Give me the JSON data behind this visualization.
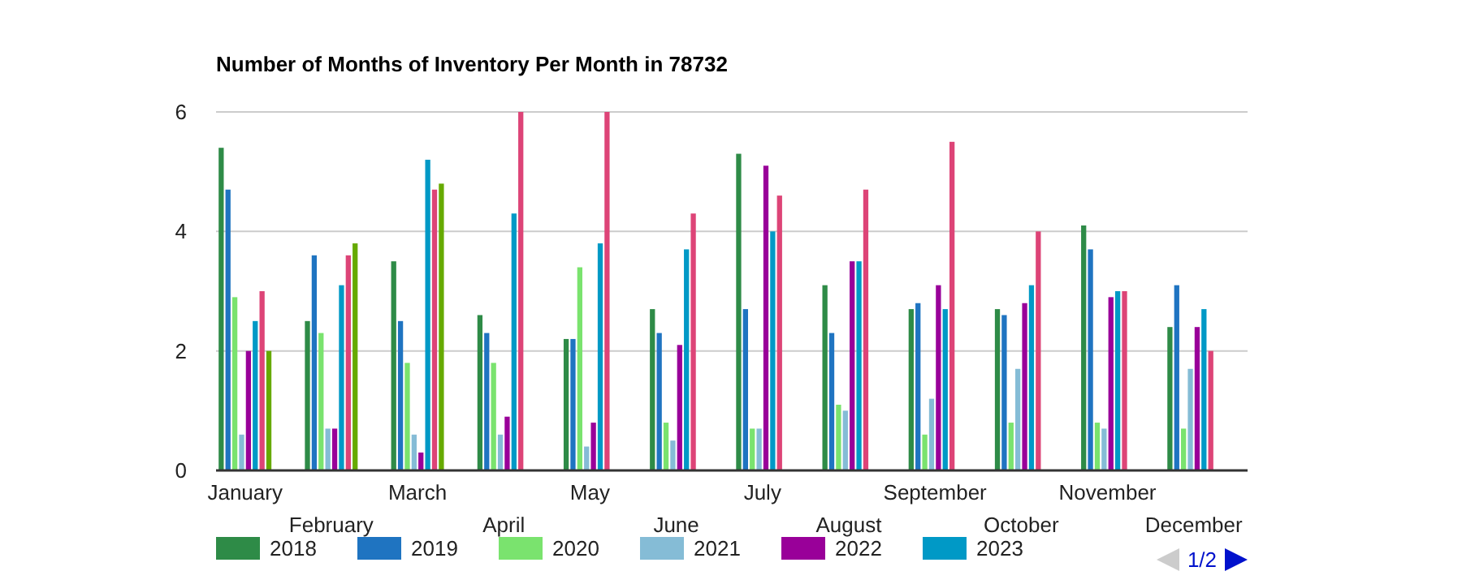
{
  "chart_data": {
    "type": "bar",
    "title": "Number of Months of Inventory Per Month in 78732",
    "categories": [
      "January",
      "February",
      "March",
      "April",
      "May",
      "June",
      "July",
      "August",
      "September",
      "October",
      "November",
      "December"
    ],
    "series": [
      {
        "name": "2018",
        "color": "#2e8b47",
        "values": [
          5.4,
          2.5,
          3.5,
          2.6,
          2.2,
          2.7,
          5.3,
          3.1,
          2.7,
          2.7,
          4.1,
          2.4
        ]
      },
      {
        "name": "2019",
        "color": "#1f74c1",
        "values": [
          4.7,
          3.6,
          2.5,
          2.3,
          2.2,
          2.3,
          2.7,
          2.3,
          2.8,
          2.6,
          3.7,
          3.1
        ]
      },
      {
        "name": "2020",
        "color": "#7ae36e",
        "values": [
          2.9,
          2.3,
          1.8,
          1.8,
          3.4,
          0.8,
          0.7,
          1.1,
          0.6,
          0.8,
          0.8,
          0.7
        ]
      },
      {
        "name": "2021",
        "color": "#85bcd6",
        "values": [
          0.6,
          0.7,
          0.6,
          0.6,
          0.4,
          0.5,
          0.7,
          1.0,
          1.2,
          1.7,
          0.7,
          1.7
        ]
      },
      {
        "name": "2022",
        "color": "#990099",
        "values": [
          2.0,
          0.7,
          0.3,
          0.9,
          0.8,
          2.1,
          5.1,
          3.5,
          3.1,
          2.8,
          2.9,
          2.4
        ]
      },
      {
        "name": "2023",
        "color": "#0099c6",
        "values": [
          2.5,
          3.1,
          5.2,
          4.3,
          3.8,
          3.7,
          4.0,
          3.5,
          2.7,
          3.1,
          3.0,
          2.7
        ]
      },
      {
        "color": "#dd4477",
        "values": [
          3.0,
          3.6,
          4.7,
          6.0,
          6.0,
          4.3,
          4.6,
          4.7,
          5.5,
          4.0,
          3.0,
          2.0
        ]
      },
      {
        "color": "#66aa00",
        "values": [
          2.0,
          3.8,
          4.8,
          null,
          null,
          null,
          null,
          null,
          null,
          null,
          null,
          null
        ]
      }
    ],
    "ylim": [
      0,
      6
    ],
    "yticks": [
      0,
      2,
      4,
      6
    ],
    "grid": true,
    "legend": "bottom",
    "annotations": [
      "1/2"
    ]
  }
}
